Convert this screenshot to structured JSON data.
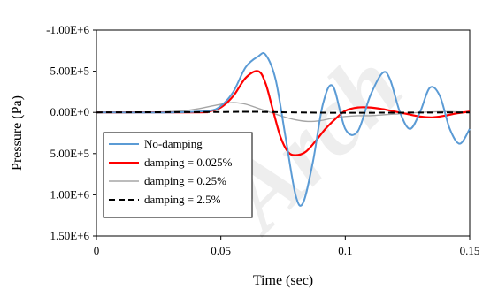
{
  "chart_data": {
    "type": "line",
    "title": "",
    "xlabel": "Time (sec)",
    "ylabel": "Pressure (Pa)",
    "xlim": [
      0,
      0.15
    ],
    "ylim": [
      -1000000,
      1500000
    ],
    "y_inverted": true,
    "grid": false,
    "legend_position": "bottom-left",
    "x_ticks": [
      {
        "value": 0,
        "label": "0"
      },
      {
        "value": 0.05,
        "label": "0.05"
      },
      {
        "value": 0.1,
        "label": "0.1"
      },
      {
        "value": 0.15,
        "label": "0.15"
      }
    ],
    "y_ticks": [
      {
        "value": -1000000,
        "label": "-1.00E+6"
      },
      {
        "value": -500000,
        "label": "-5.00E+5"
      },
      {
        "value": 0,
        "label": "0.00E+0"
      },
      {
        "value": 500000,
        "label": "5.00E+5"
      },
      {
        "value": 1000000,
        "label": "1.00E+6"
      },
      {
        "value": 1500000,
        "label": "1.50E+6"
      }
    ],
    "series": [
      {
        "name": "No-damping",
        "color": "#5b9bd5",
        "dash": "solid",
        "x": [
          0,
          0.03,
          0.045,
          0.05,
          0.055,
          0.06,
          0.065,
          0.068,
          0.072,
          0.076,
          0.08,
          0.083,
          0.087,
          0.091,
          0.095,
          0.1,
          0.105,
          0.11,
          0.115,
          0.118,
          0.122,
          0.126,
          0.13,
          0.134,
          0.138,
          0.142,
          0.146,
          0.15
        ],
        "y": [
          0,
          0,
          -20000,
          -80000,
          -250000,
          -550000,
          -680000,
          -700000,
          -400000,
          300000,
          1000000,
          1100000,
          600000,
          -100000,
          -320000,
          200000,
          230000,
          -200000,
          -480000,
          -400000,
          0,
          200000,
          0,
          -300000,
          -200000,
          200000,
          380000,
          200000
        ]
      },
      {
        "name": "damping = 0.025%",
        "color": "#ff0000",
        "dash": "solid",
        "x": [
          0,
          0.04,
          0.045,
          0.05,
          0.055,
          0.06,
          0.065,
          0.068,
          0.071,
          0.074,
          0.077,
          0.08,
          0.084,
          0.088,
          0.092,
          0.096,
          0.1,
          0.105,
          0.11,
          0.115,
          0.12,
          0.125,
          0.13,
          0.135,
          0.14,
          0.145,
          0.15
        ],
        "y": [
          0,
          0,
          -10000,
          -60000,
          -200000,
          -420000,
          -500000,
          -350000,
          -20000,
          300000,
          480000,
          520000,
          480000,
          350000,
          200000,
          80000,
          -20000,
          -60000,
          -60000,
          -40000,
          -10000,
          20000,
          50000,
          60000,
          40000,
          10000,
          -10000
        ]
      },
      {
        "name": "damping = 0.25%",
        "color": "#a6a6a6",
        "dash": "solid",
        "x": [
          0,
          0.03,
          0.04,
          0.05,
          0.055,
          0.06,
          0.065,
          0.07,
          0.075,
          0.08,
          0.085,
          0.09,
          0.095,
          0.1,
          0.105,
          0.11,
          0.115,
          0.12,
          0.13,
          0.14,
          0.15
        ],
        "y": [
          0,
          -10000,
          -40000,
          -100000,
          -120000,
          -100000,
          -50000,
          0,
          50000,
          90000,
          110000,
          100000,
          70000,
          50000,
          40000,
          40000,
          30000,
          20000,
          0,
          -10000,
          0
        ]
      },
      {
        "name": "damping = 2.5%",
        "color": "#000000",
        "dash": "dashed",
        "x": [
          0,
          0.05,
          0.06,
          0.07,
          0.08,
          0.1,
          0.12,
          0.15
        ],
        "y": [
          0,
          -5000,
          -8000,
          -5000,
          0,
          5000,
          3000,
          0
        ]
      }
    ]
  },
  "watermark": "Arch"
}
